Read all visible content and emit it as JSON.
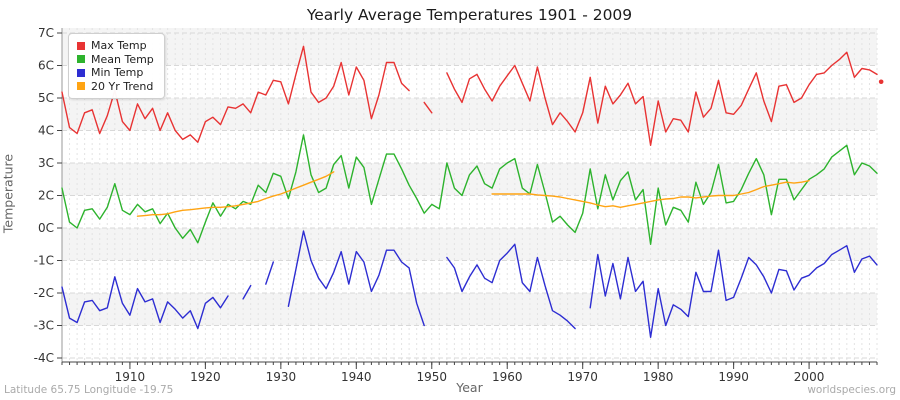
{
  "page": {
    "footer_left": "Latitude 65.75 Longitude -19.75",
    "footer_right": "worldspecies.org"
  },
  "chart_data": {
    "type": "line",
    "title": "Yearly Average Temperatures 1901 - 2009",
    "xlabel": "Year",
    "ylabel": "Temperature",
    "x_start": 1901,
    "x_end": 2009,
    "ylim": [
      -4,
      7
    ],
    "y_tick_labels": [
      "7C",
      "6C",
      "5C",
      "4C",
      "3C",
      "2C",
      "0C",
      "-1C",
      "-2C",
      "-3C",
      "-4C"
    ],
    "y_tick_values": [
      7.0,
      5.9,
      4.8,
      3.7,
      2.6,
      1.5,
      0.4,
      -0.7,
      -1.8,
      -2.9,
      -4.0
    ],
    "x_tick_labels": [
      "1910",
      "1920",
      "1930",
      "1940",
      "1950",
      "1960",
      "1970",
      "1980",
      "1990",
      "2000"
    ],
    "x_tick_values": [
      1910,
      1920,
      1930,
      1940,
      1950,
      1960,
      1970,
      1980,
      1990,
      2000
    ],
    "x_minor_tick_step": 1,
    "grid": "dashed yearly vertical lines, dashed horizontal tick lines, alternating horizontal bands",
    "band_colors": [
      "#f4f4f4",
      "#ffffff"
    ],
    "grid_color_vertical": "#e3e3e3",
    "grid_color_horizontal": "#d8d8d8",
    "axis_color": "#444444",
    "legend_position": "top-left",
    "series": [
      {
        "name": "Max Temp",
        "color": "#e83333",
        "values": [
          5.0,
          3.8,
          3.6,
          4.3,
          4.4,
          3.6,
          4.2,
          5.05,
          4.0,
          3.7,
          4.6,
          4.1,
          4.45,
          3.7,
          4.3,
          3.7,
          3.4,
          3.55,
          3.3,
          4.0,
          4.15,
          3.9,
          4.5,
          4.45,
          4.6,
          4.3,
          5.0,
          4.9,
          5.4,
          5.35,
          4.6,
          5.6,
          6.55,
          5.0,
          4.65,
          4.8,
          5.2,
          6.0,
          4.9,
          5.85,
          5.4,
          4.1,
          4.9,
          6.0,
          6.0,
          5.3,
          5.05,
          null,
          4.65,
          4.3,
          null,
          5.65,
          5.1,
          4.65,
          5.45,
          5.6,
          5.1,
          4.7,
          5.2,
          5.55,
          5.9,
          5.3,
          4.7,
          5.85,
          4.8,
          3.9,
          4.3,
          4.0,
          3.65,
          4.3,
          5.5,
          3.95,
          5.2,
          4.6,
          4.9,
          5.3,
          4.6,
          4.85,
          3.2,
          4.7,
          3.65,
          4.1,
          4.05,
          3.65,
          5.0,
          4.15,
          4.45,
          5.4,
          4.3,
          4.25,
          4.55,
          5.1,
          5.65,
          4.7,
          4.0,
          5.2,
          5.25,
          4.65,
          4.8,
          5.25,
          5.6,
          5.65,
          5.9,
          6.1,
          6.35,
          5.5,
          5.8,
          5.75,
          5.6
        ]
      },
      {
        "name": "Mean Temp",
        "color": "#2db32d",
        "values": [
          1.75,
          0.6,
          0.4,
          1.0,
          1.05,
          0.7,
          1.1,
          1.9,
          1.0,
          0.85,
          1.2,
          0.95,
          1.05,
          0.55,
          0.9,
          0.4,
          0.05,
          0.35,
          -0.1,
          0.6,
          1.25,
          0.8,
          1.2,
          1.05,
          1.3,
          1.2,
          1.85,
          1.6,
          2.25,
          2.15,
          1.4,
          2.3,
          3.55,
          2.2,
          1.6,
          1.75,
          2.55,
          2.85,
          1.75,
          2.8,
          2.45,
          1.2,
          2.05,
          2.9,
          2.9,
          2.4,
          1.85,
          1.4,
          0.9,
          1.2,
          1.05,
          2.6,
          1.75,
          1.5,
          2.2,
          2.5,
          1.9,
          1.75,
          2.4,
          2.6,
          2.75,
          1.75,
          1.55,
          2.55,
          1.6,
          0.6,
          0.8,
          0.5,
          0.25,
          0.9,
          2.4,
          1.05,
          2.2,
          1.35,
          2.0,
          2.3,
          1.35,
          1.7,
          -0.15,
          1.75,
          0.5,
          1.1,
          1.0,
          0.6,
          1.95,
          1.2,
          1.6,
          2.55,
          1.25,
          1.3,
          1.7,
          2.25,
          2.75,
          2.2,
          0.85,
          2.05,
          2.05,
          1.35,
          1.7,
          2.05,
          2.2,
          2.4,
          2.8,
          3.0,
          3.2,
          2.2,
          2.6,
          2.5,
          2.25
        ]
      },
      {
        "name": "Min Temp",
        "color": "#2d2dd2",
        "values": [
          -1.6,
          -2.65,
          -2.8,
          -2.1,
          -2.05,
          -2.4,
          -2.3,
          -1.25,
          -2.15,
          -2.55,
          -1.65,
          -2.1,
          -2.0,
          -2.8,
          -2.1,
          -2.35,
          -2.65,
          -2.4,
          -3.0,
          -2.15,
          -1.95,
          -2.3,
          -1.9,
          null,
          -2.0,
          -1.55,
          null,
          -1.5,
          -0.75,
          null,
          -2.25,
          -1.0,
          0.3,
          -0.7,
          -1.3,
          -1.65,
          -1.1,
          -0.4,
          -1.5,
          -0.4,
          -0.75,
          -1.75,
          -1.2,
          -0.35,
          -0.35,
          -0.75,
          -0.95,
          -2.15,
          -2.9,
          null,
          null,
          -0.6,
          -0.95,
          -1.75,
          -1.25,
          -0.85,
          -1.3,
          -1.45,
          -0.7,
          -0.45,
          -0.15,
          -1.45,
          -1.75,
          -0.6,
          -1.55,
          -2.4,
          -2.55,
          -2.75,
          -3.0,
          null,
          -2.3,
          -0.5,
          -1.9,
          -0.8,
          -2.0,
          -0.6,
          -1.75,
          -1.4,
          -3.3,
          -1.65,
          -2.9,
          -2.2,
          -2.35,
          -2.6,
          -1.1,
          -1.75,
          -1.75,
          -0.35,
          -2.05,
          -1.95,
          -1.3,
          -0.6,
          -0.85,
          -1.25,
          -1.8,
          -1.0,
          -1.05,
          -1.7,
          -1.3,
          -1.2,
          -0.95,
          -0.8,
          -0.5,
          -0.35,
          -0.2,
          -1.1,
          -0.65,
          -0.55,
          -0.85
        ]
      },
      {
        "name": "20 Yr Trend",
        "color": "#ffa413",
        "values": [
          null,
          null,
          null,
          null,
          null,
          null,
          null,
          null,
          null,
          null,
          0.8,
          0.82,
          0.85,
          0.85,
          0.88,
          0.95,
          1.0,
          1.02,
          1.05,
          1.08,
          1.1,
          1.1,
          1.12,
          1.15,
          1.2,
          1.25,
          1.3,
          1.4,
          1.48,
          1.55,
          1.65,
          1.75,
          1.85,
          1.95,
          2.05,
          2.15,
          2.3,
          null,
          null,
          null,
          null,
          null,
          null,
          null,
          null,
          null,
          null,
          null,
          null,
          null,
          null,
          null,
          null,
          null,
          null,
          null,
          null,
          1.55,
          1.55,
          1.55,
          1.55,
          1.55,
          1.55,
          1.52,
          1.5,
          1.48,
          1.45,
          1.4,
          1.35,
          1.3,
          1.25,
          1.18,
          1.12,
          1.15,
          1.1,
          1.15,
          1.2,
          1.25,
          1.3,
          1.35,
          1.38,
          1.4,
          1.45,
          1.45,
          1.42,
          1.45,
          1.48,
          1.5,
          1.5,
          1.5,
          1.55,
          1.6,
          1.7,
          1.8,
          1.85,
          1.9,
          1.95,
          1.92,
          1.95,
          2.0,
          null,
          null,
          null,
          null,
          null,
          null,
          null,
          null,
          null
        ]
      }
    ],
    "stray_point": {
      "series": "Max Temp",
      "x": 2009.55,
      "value": 5.35
    }
  }
}
